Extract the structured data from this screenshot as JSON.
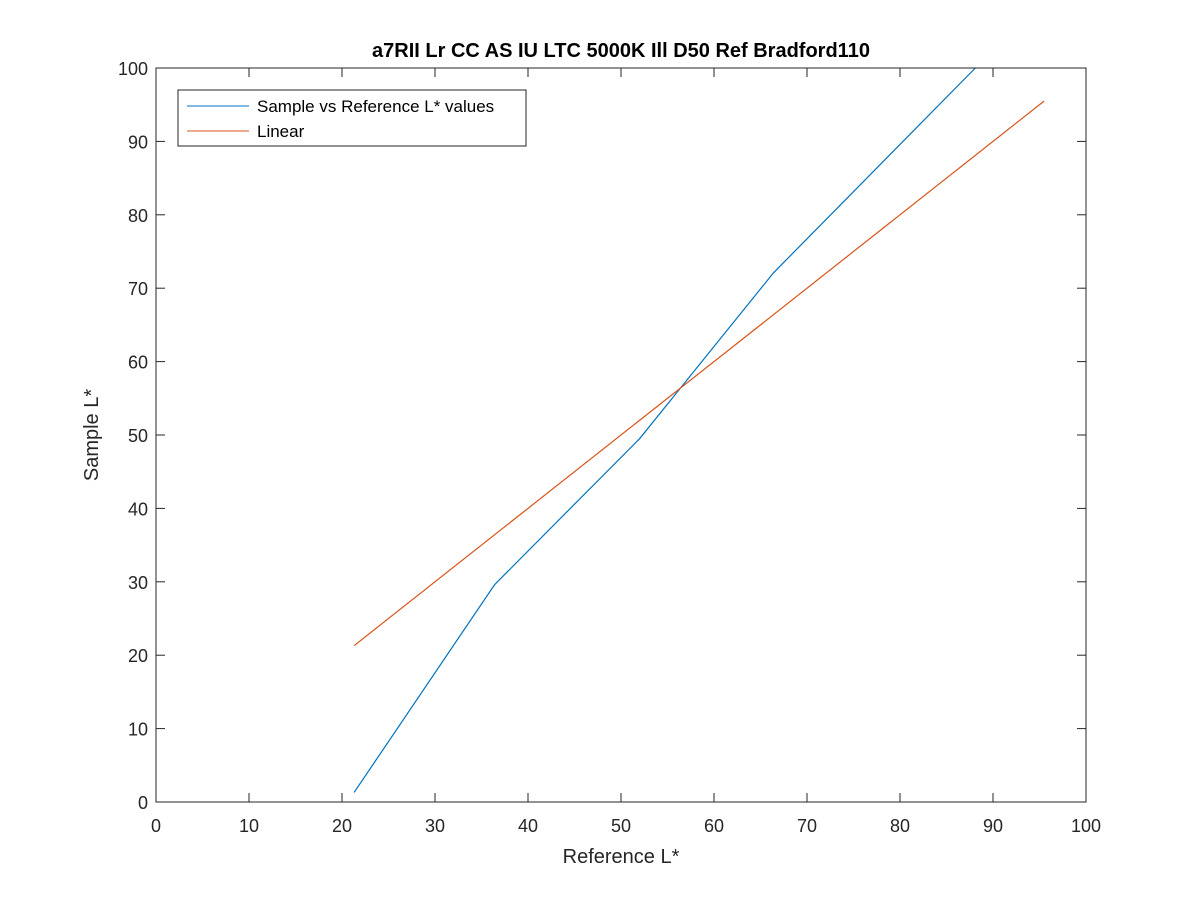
{
  "chart_data": {
    "type": "line",
    "title": "a7RII Lr CC AS IU LTC 5000K Ill D50 Ref Bradford110",
    "xlabel": "Reference L*",
    "ylabel": "Sample L*",
    "xlim": [
      0,
      100
    ],
    "ylim": [
      0,
      100
    ],
    "xticks": [
      0,
      10,
      20,
      30,
      40,
      50,
      60,
      70,
      80,
      90,
      100
    ],
    "yticks": [
      0,
      10,
      20,
      30,
      40,
      50,
      60,
      70,
      80,
      90,
      100
    ],
    "grid": false,
    "legend_position": "top-left",
    "series": [
      {
        "name": "Sample vs Reference L* values",
        "color": "#0072bd",
        "x": [
          21.3,
          36.4,
          52.0,
          66.4,
          88.1
        ],
        "y": [
          1.3,
          29.6,
          49.5,
          72.1,
          100.0
        ]
      },
      {
        "name": "Linear",
        "color": "#d95319",
        "x": [
          21.3,
          95.5
        ],
        "y": [
          21.3,
          95.5
        ]
      }
    ]
  }
}
